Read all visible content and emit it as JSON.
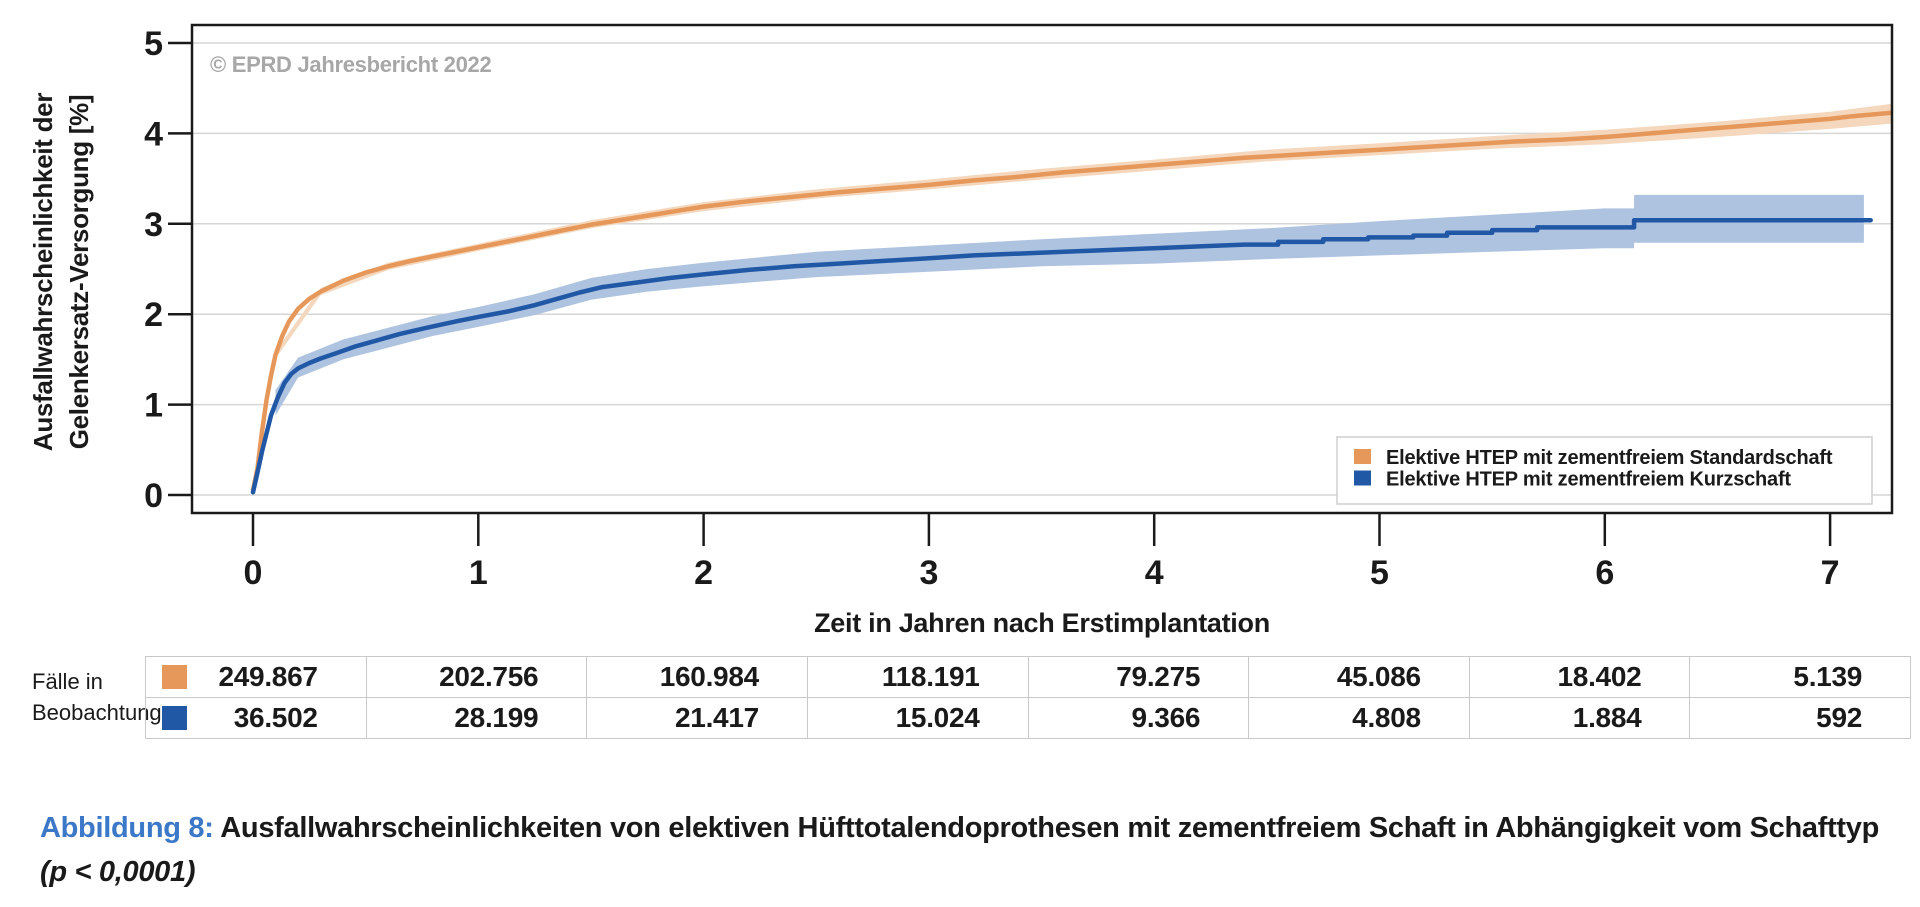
{
  "figure": {
    "copyright": "© EPRD Jahresbericht 2022",
    "caption": {
      "label": "Abbildung 8:",
      "text": " Ausfallwahrscheinlichkeiten von elektiven Hüfttotalendoprothesen mit zementfreiem Schaft in Abhängigkeit vom Schafttyp ",
      "p_value": "(p < 0,0001)",
      "label_color": "#3b78c8"
    }
  },
  "chart_data": {
    "type": "line",
    "title": "",
    "xlabel": "Zeit in Jahren nach Erstimplantation",
    "ylabel_lines": [
      "Ausfallwahrscheinlichkeit der",
      "Gelenkersatz-Versorgung [%]"
    ],
    "xlim": [
      -0.27,
      7.27
    ],
    "ylim": [
      -0.2,
      5.2
    ],
    "xticks": [
      0,
      1,
      2,
      3,
      4,
      5,
      6,
      7
    ],
    "yticks": [
      0,
      1,
      2,
      3,
      4,
      5
    ],
    "grid": "horizontal",
    "legend_position": "inside-bottom-right",
    "series": [
      {
        "id": "standardschaft",
        "name": "Elektive HTEP mit zementfreiem Standardschaft",
        "color": "#e6975a",
        "band_color": "#f4d7bc",
        "points": [
          [
            0,
            0.05
          ],
          [
            0.02,
            0.3
          ],
          [
            0.04,
            0.7
          ],
          [
            0.06,
            1.05
          ],
          [
            0.08,
            1.32
          ],
          [
            0.1,
            1.55
          ],
          [
            0.13,
            1.76
          ],
          [
            0.16,
            1.92
          ],
          [
            0.2,
            2.06
          ],
          [
            0.25,
            2.17
          ],
          [
            0.3,
            2.25
          ],
          [
            0.35,
            2.31
          ],
          [
            0.4,
            2.37
          ],
          [
            0.5,
            2.46
          ],
          [
            0.6,
            2.53
          ],
          [
            0.7,
            2.59
          ],
          [
            0.8,
            2.64
          ],
          [
            0.9,
            2.69
          ],
          [
            1,
            2.74
          ],
          [
            1.1,
            2.79
          ],
          [
            1.2,
            2.84
          ],
          [
            1.3,
            2.89
          ],
          [
            1.4,
            2.94
          ],
          [
            1.5,
            2.99
          ],
          [
            1.6,
            3.03
          ],
          [
            1.7,
            3.07
          ],
          [
            1.8,
            3.11
          ],
          [
            1.9,
            3.15
          ],
          [
            2,
            3.19
          ],
          [
            2.2,
            3.25
          ],
          [
            2.4,
            3.3
          ],
          [
            2.6,
            3.35
          ],
          [
            2.8,
            3.39
          ],
          [
            3,
            3.43
          ],
          [
            3.2,
            3.48
          ],
          [
            3.4,
            3.52
          ],
          [
            3.6,
            3.57
          ],
          [
            3.8,
            3.61
          ],
          [
            4,
            3.65
          ],
          [
            4.2,
            3.69
          ],
          [
            4.4,
            3.73
          ],
          [
            4.6,
            3.76
          ],
          [
            4.8,
            3.79
          ],
          [
            5,
            3.82
          ],
          [
            5.2,
            3.85
          ],
          [
            5.4,
            3.88
          ],
          [
            5.6,
            3.91
          ],
          [
            5.8,
            3.93
          ],
          [
            6,
            3.96
          ],
          [
            6.1,
            3.98
          ],
          [
            6.25,
            4.01
          ],
          [
            6.4,
            4.04
          ],
          [
            6.55,
            4.07
          ],
          [
            6.7,
            4.1
          ],
          [
            6.85,
            4.13
          ],
          [
            7,
            4.16
          ],
          [
            7.1,
            4.19
          ],
          [
            7.28,
            4.23
          ]
        ],
        "band": [
          [
            0.1,
            1.51,
            1.59
          ],
          [
            0.3,
            2.21,
            2.29
          ],
          [
            0.6,
            2.49,
            2.57
          ],
          [
            1,
            2.7,
            2.78
          ],
          [
            1.5,
            2.95,
            3.04
          ],
          [
            2,
            3.14,
            3.24
          ],
          [
            2.5,
            3.28,
            3.38
          ],
          [
            3,
            3.38,
            3.49
          ],
          [
            3.5,
            3.49,
            3.61
          ],
          [
            4,
            3.59,
            3.71
          ],
          [
            4.5,
            3.69,
            3.82
          ],
          [
            5,
            3.76,
            3.89
          ],
          [
            5.5,
            3.83,
            3.97
          ],
          [
            6,
            3.88,
            4.04
          ],
          [
            6.5,
            3.96,
            4.13
          ],
          [
            7,
            4.05,
            4.24
          ],
          [
            7.28,
            4.11,
            4.33
          ]
        ]
      },
      {
        "id": "kurzschaft",
        "name": "Elektive HTEP mit zementfreiem Kurzschaft",
        "color": "#2158a6",
        "band_color": "#aec3e0",
        "points": [
          [
            0,
            0.03
          ],
          [
            0.02,
            0.25
          ],
          [
            0.04,
            0.48
          ],
          [
            0.06,
            0.68
          ],
          [
            0.08,
            0.88
          ],
          [
            0.11,
            1.08
          ],
          [
            0.14,
            1.24
          ],
          [
            0.17,
            1.34
          ],
          [
            0.2,
            1.4
          ],
          [
            0.25,
            1.46
          ],
          [
            0.3,
            1.51
          ],
          [
            0.37,
            1.57
          ],
          [
            0.45,
            1.64
          ],
          [
            0.55,
            1.71
          ],
          [
            0.65,
            1.78
          ],
          [
            0.77,
            1.85
          ],
          [
            0.9,
            1.92
          ],
          [
            1,
            1.97
          ],
          [
            1.13,
            2.03
          ],
          [
            1.25,
            2.1
          ],
          [
            1.35,
            2.17
          ],
          [
            1.45,
            2.24
          ],
          [
            1.55,
            2.3
          ],
          [
            1.7,
            2.35
          ],
          [
            1.85,
            2.4
          ],
          [
            2,
            2.44
          ],
          [
            2.2,
            2.49
          ],
          [
            2.4,
            2.53
          ],
          [
            2.6,
            2.56
          ],
          [
            2.8,
            2.59
          ],
          [
            3,
            2.62
          ],
          [
            3.2,
            2.65
          ],
          [
            3.4,
            2.67
          ],
          [
            3.6,
            2.69
          ],
          [
            3.8,
            2.71
          ],
          [
            4,
            2.73
          ],
          [
            4.2,
            2.75
          ],
          [
            4.4,
            2.77
          ],
          [
            4.55,
            2.77
          ],
          [
            4.55,
            2.8
          ],
          [
            4.75,
            2.8
          ],
          [
            4.75,
            2.83
          ],
          [
            4.95,
            2.83
          ],
          [
            4.95,
            2.85
          ],
          [
            5.15,
            2.85
          ],
          [
            5.15,
            2.87
          ],
          [
            5.3,
            2.87
          ],
          [
            5.3,
            2.9
          ],
          [
            5.5,
            2.9
          ],
          [
            5.5,
            2.93
          ],
          [
            5.7,
            2.93
          ],
          [
            5.7,
            2.96
          ],
          [
            6.13,
            2.96
          ],
          [
            6.13,
            3.04
          ],
          [
            7.18,
            3.04
          ]
        ],
        "band": [
          [
            0.1,
            0.88,
            1.16
          ],
          [
            0.2,
            1.3,
            1.52
          ],
          [
            0.4,
            1.5,
            1.72
          ],
          [
            0.6,
            1.63,
            1.85
          ],
          [
            0.8,
            1.76,
            1.98
          ],
          [
            1,
            1.86,
            2.08
          ],
          [
            1.25,
            1.99,
            2.22
          ],
          [
            1.5,
            2.16,
            2.4
          ],
          [
            1.75,
            2.25,
            2.5
          ],
          [
            2,
            2.31,
            2.57
          ],
          [
            2.5,
            2.41,
            2.69
          ],
          [
            3,
            2.47,
            2.76
          ],
          [
            3.5,
            2.53,
            2.83
          ],
          [
            4,
            2.56,
            2.89
          ],
          [
            4.5,
            2.61,
            2.95
          ],
          [
            5,
            2.65,
            3.03
          ],
          [
            5.5,
            2.69,
            3.1
          ],
          [
            6,
            2.73,
            3.17
          ],
          [
            6.13,
            2.73,
            3.17
          ],
          [
            6.13,
            2.79,
            3.32
          ],
          [
            7.15,
            2.79,
            3.32
          ]
        ]
      }
    ]
  },
  "table": {
    "row_label": [
      "Fälle in",
      "Beobachtung"
    ],
    "rows": [
      {
        "series": "Elektive HTEP mit zementfreiem Standardschaft",
        "color": "#e6975a",
        "values": [
          "249.867",
          "202.756",
          "160.984",
          "118.191",
          "79.275",
          "45.086",
          "18.402",
          "5.139"
        ]
      },
      {
        "series": "Elektive HTEP mit zementfreiem Kurzschaft",
        "color": "#2158a6",
        "values": [
          "36.502",
          "28.199",
          "21.417",
          "15.024",
          "9.366",
          "4.808",
          "1.884",
          "592"
        ]
      }
    ]
  },
  "colors": {
    "grid": "#d6d6d6",
    "frame": "#1a1a1a",
    "copyright": "#a7a7a7",
    "table_border": "#c9c9c9",
    "legend_border": "#cfcfcf"
  }
}
